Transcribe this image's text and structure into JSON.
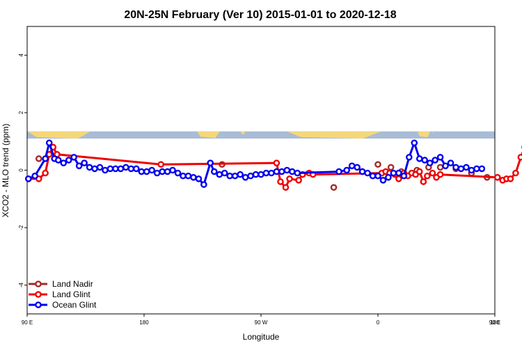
{
  "chart_data": {
    "type": "line",
    "title": "20N-25N February (Ver 10)   2015-01-01 to 2020-12-18",
    "xlabel": "Longitude",
    "ylabel": "XCO2 - MLO trend (ppm)",
    "x_axis_note": "x values are degrees east on a 0-360 scale; the axis spans 90E to 180 (one wrap past 360)",
    "xlim": [
      90,
      450
    ],
    "ylim": [
      -5,
      5
    ],
    "x_ticks": [
      {
        "value": 90,
        "label": "90 E"
      },
      {
        "value": 180,
        "label": "180"
      },
      {
        "value": 270,
        "label": "90 W"
      },
      {
        "value": 360,
        "label": "0"
      },
      {
        "value": 450,
        "label": "90 E"
      },
      {
        "value": 540,
        "label": "180"
      }
    ],
    "y_ticks": [
      {
        "value": -4,
        "label": "-4"
      },
      {
        "value": -2,
        "label": "-2"
      },
      {
        "value": 0,
        "label": "0"
      },
      {
        "value": 2,
        "label": "2"
      },
      {
        "value": 4,
        "label": "4"
      }
    ],
    "map_strip": {
      "ymin": 1.1,
      "ymax": 1.35,
      "ocean_color": "#a9bcd6",
      "land_color": "#f5d77a"
    },
    "legend_position": "bottom-left",
    "series": [
      {
        "name": "Land Nadir",
        "color": "#a52a2a",
        "points": [
          [
            99,
            0.4
          ],
          [
            240,
            0.2
          ],
          [
            326,
            -0.6
          ],
          [
            348,
            -0.05
          ],
          [
            360,
            0.2
          ],
          [
            370,
            0.1
          ],
          [
            378,
            -0.05
          ],
          [
            390,
            0.0
          ],
          [
            399,
            0.1
          ],
          [
            408,
            0.1
          ],
          [
            420,
            0.05
          ],
          [
            432,
            -0.1
          ],
          [
            444,
            -0.25
          ]
        ]
      },
      {
        "name": "Land Glint",
        "color": "#ee0000",
        "points": [
          [
            91,
            -0.3
          ],
          [
            99,
            -0.3
          ],
          [
            104,
            -0.1
          ],
          [
            107,
            0.55
          ],
          [
            110,
            0.8
          ],
          [
            113,
            0.55
          ],
          [
            193,
            0.2
          ],
          [
            282,
            0.25
          ],
          [
            285,
            -0.4
          ],
          [
            289,
            -0.6
          ],
          [
            292,
            -0.3
          ],
          [
            299,
            -0.35
          ],
          [
            302,
            -0.15
          ],
          [
            307,
            -0.1
          ],
          [
            310,
            -0.15
          ],
          [
            363,
            -0.1
          ],
          [
            366,
            -0.05
          ],
          [
            369,
            -0.1
          ],
          [
            373,
            -0.15
          ],
          [
            376,
            -0.3
          ],
          [
            380,
            -0.1
          ],
          [
            383,
            -0.2
          ],
          [
            386,
            -0.1
          ],
          [
            389,
            -0.15
          ],
          [
            392,
            -0.05
          ],
          [
            395,
            -0.4
          ],
          [
            398,
            -0.2
          ],
          [
            402,
            -0.1
          ],
          [
            405,
            -0.25
          ],
          [
            408,
            -0.15
          ],
          [
            452,
            -0.25
          ],
          [
            456,
            -0.35
          ],
          [
            459,
            -0.3
          ],
          [
            462,
            -0.3
          ],
          [
            466,
            -0.1
          ],
          [
            470,
            0.45
          ],
          [
            473,
            0.8
          ],
          [
            476,
            0.55
          ]
        ]
      },
      {
        "name": "Ocean Glint",
        "color": "#0000ee",
        "points": [
          [
            91,
            -0.3
          ],
          [
            96,
            -0.2
          ],
          [
            104,
            0.4
          ],
          [
            107,
            0.95
          ],
          [
            111,
            0.4
          ],
          [
            114,
            0.35
          ],
          [
            118,
            0.25
          ],
          [
            122,
            0.35
          ],
          [
            126,
            0.45
          ],
          [
            130,
            0.15
          ],
          [
            134,
            0.25
          ],
          [
            138,
            0.1
          ],
          [
            142,
            0.05
          ],
          [
            146,
            0.1
          ],
          [
            150,
            0.0
          ],
          [
            154,
            0.05
          ],
          [
            158,
            0.05
          ],
          [
            162,
            0.05
          ],
          [
            166,
            0.1
          ],
          [
            170,
            0.05
          ],
          [
            174,
            0.05
          ],
          [
            178,
            -0.05
          ],
          [
            182,
            -0.05
          ],
          [
            186,
            0.0
          ],
          [
            190,
            -0.1
          ],
          [
            194,
            -0.05
          ],
          [
            198,
            -0.05
          ],
          [
            202,
            0.0
          ],
          [
            206,
            -0.1
          ],
          [
            210,
            -0.2
          ],
          [
            214,
            -0.2
          ],
          [
            218,
            -0.25
          ],
          [
            222,
            -0.3
          ],
          [
            226,
            -0.5
          ],
          [
            231,
            0.25
          ],
          [
            234,
            -0.05
          ],
          [
            238,
            -0.15
          ],
          [
            242,
            -0.1
          ],
          [
            246,
            -0.2
          ],
          [
            250,
            -0.2
          ],
          [
            254,
            -0.15
          ],
          [
            258,
            -0.25
          ],
          [
            262,
            -0.2
          ],
          [
            266,
            -0.15
          ],
          [
            270,
            -0.15
          ],
          [
            274,
            -0.1
          ],
          [
            278,
            -0.1
          ],
          [
            282,
            -0.05
          ],
          [
            286,
            -0.05
          ],
          [
            290,
            0.0
          ],
          [
            294,
            -0.05
          ],
          [
            298,
            -0.1
          ],
          [
            330,
            -0.05
          ],
          [
            336,
            0.0
          ],
          [
            340,
            0.15
          ],
          [
            344,
            0.1
          ],
          [
            348,
            -0.05
          ],
          [
            352,
            -0.1
          ],
          [
            356,
            -0.2
          ],
          [
            360,
            -0.2
          ],
          [
            364,
            -0.35
          ],
          [
            368,
            -0.25
          ],
          [
            372,
            -0.1
          ],
          [
            376,
            -0.1
          ],
          [
            380,
            -0.2
          ],
          [
            384,
            0.45
          ],
          [
            388,
            0.95
          ],
          [
            392,
            0.4
          ],
          [
            396,
            0.35
          ],
          [
            400,
            0.25
          ],
          [
            404,
            0.35
          ],
          [
            408,
            0.45
          ],
          [
            412,
            0.15
          ],
          [
            416,
            0.25
          ],
          [
            420,
            0.1
          ],
          [
            424,
            0.05
          ],
          [
            428,
            0.1
          ],
          [
            432,
            0.0
          ],
          [
            436,
            0.05
          ],
          [
            440,
            0.05
          ]
        ]
      }
    ]
  }
}
